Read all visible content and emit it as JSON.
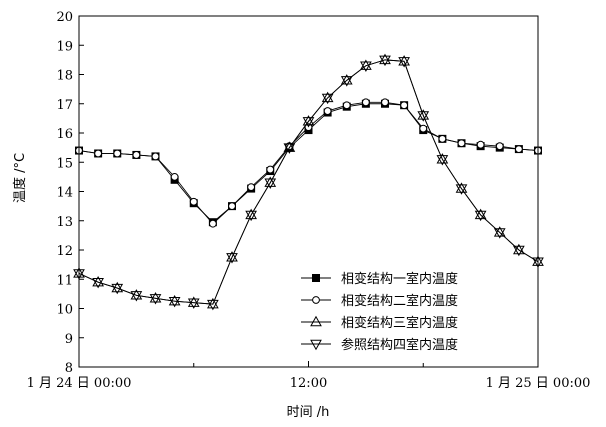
{
  "chart_data": {
    "type": "line",
    "xlabel": "时间 /h",
    "ylabel": "温度 /°C",
    "xlim": [
      0,
      24
    ],
    "ylim": [
      8,
      20
    ],
    "y_ticks": [
      8,
      9,
      10,
      11,
      12,
      13,
      14,
      15,
      16,
      17,
      18,
      19,
      20
    ],
    "x_ticks": [
      {
        "value": 0,
        "label": "1 月 24 日 00:00"
      },
      {
        "value": 12,
        "label": "12:00"
      },
      {
        "value": 24,
        "label": "1 月 25 日 00:00"
      }
    ],
    "x_minor_ticks": [
      6,
      18
    ],
    "legend_position": "bottom-right",
    "grid": false,
    "x": [
      0,
      1,
      2,
      3,
      4,
      5,
      6,
      7,
      8,
      9,
      10,
      11,
      12,
      13,
      14,
      15,
      16,
      17,
      18,
      19,
      20,
      21,
      22,
      23,
      24
    ],
    "series": [
      {
        "name": "相变结构一室内温度",
        "marker": "square-filled",
        "values": [
          15.4,
          15.3,
          15.3,
          15.25,
          15.2,
          14.4,
          13.6,
          12.95,
          13.5,
          14.1,
          14.7,
          15.5,
          16.1,
          16.7,
          16.9,
          17.0,
          17.0,
          16.95,
          16.1,
          15.8,
          15.65,
          15.55,
          15.5,
          15.45,
          15.4
        ]
      },
      {
        "name": "相变结构二室内温度",
        "marker": "circle-open",
        "values": [
          15.4,
          15.3,
          15.3,
          15.25,
          15.2,
          14.5,
          13.65,
          12.9,
          13.5,
          14.15,
          14.75,
          15.55,
          16.2,
          16.75,
          16.95,
          17.05,
          17.05,
          16.95,
          16.15,
          15.8,
          15.65,
          15.6,
          15.55,
          15.45,
          15.4
        ]
      },
      {
        "name": "相变结构三室内温度",
        "marker": "triangle-up-open",
        "values": [
          11.2,
          10.9,
          10.7,
          10.45,
          10.35,
          10.25,
          10.2,
          10.15,
          11.75,
          13.2,
          14.3,
          15.5,
          16.4,
          17.2,
          17.8,
          18.3,
          18.5,
          18.45,
          16.6,
          15.1,
          14.1,
          13.2,
          12.6,
          12.0,
          11.6
        ]
      },
      {
        "name": "参照结构四室内温度",
        "marker": "triangle-down-open",
        "values": [
          11.2,
          10.9,
          10.7,
          10.45,
          10.35,
          10.25,
          10.2,
          10.15,
          11.75,
          13.2,
          14.3,
          15.5,
          16.4,
          17.2,
          17.8,
          18.3,
          18.5,
          18.45,
          16.6,
          15.1,
          14.1,
          13.2,
          12.6,
          12.0,
          11.6
        ]
      }
    ]
  }
}
